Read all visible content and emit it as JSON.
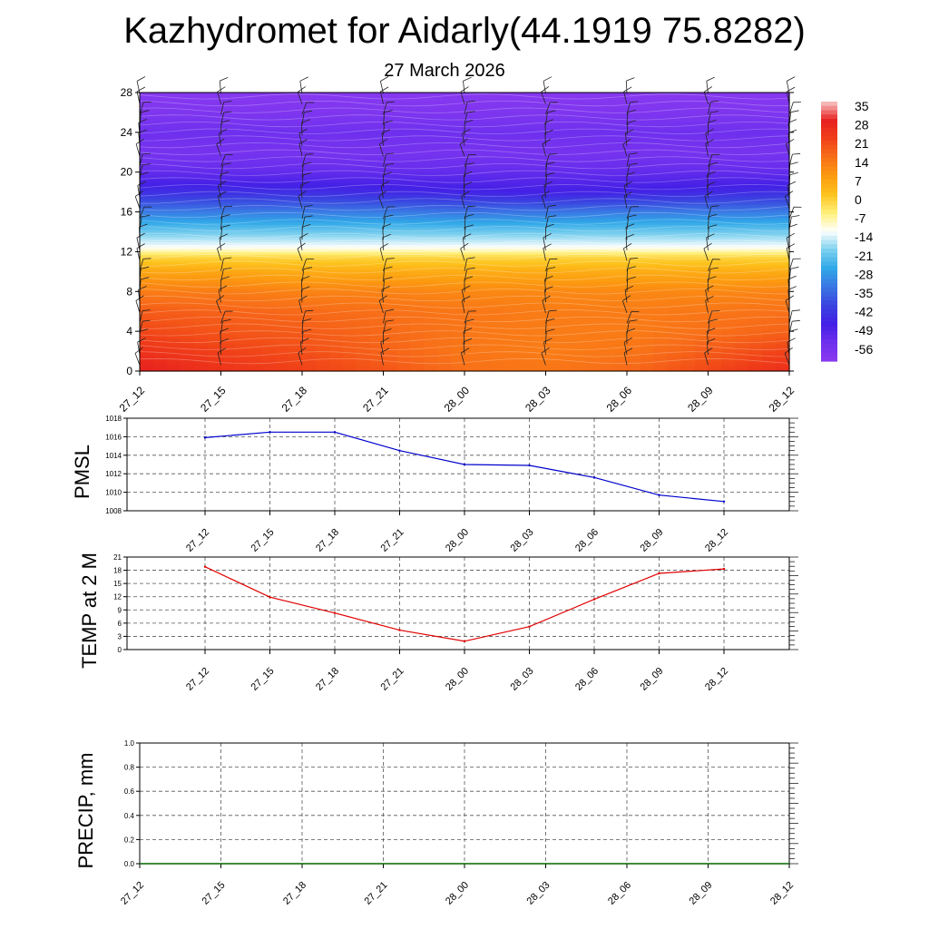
{
  "title": "Kazhydromet for Aidarly(44.1919 75.8282)",
  "subtitle": "27 March 2026",
  "colors": {
    "pmsl_line": "#0000cc",
    "temp_line": "#e00000",
    "precip_line": "#006600",
    "grid": "#555555"
  },
  "chart_data": [
    {
      "type": "heatmap",
      "name": "vertical temperature cross-section with wind barbs",
      "x_ticks": [
        "27_12",
        "27_15",
        "27_18",
        "27_21",
        "28_00",
        "28_03",
        "28_06",
        "28_09",
        "28_12"
      ],
      "y_ticks": [
        "0",
        "4",
        "8",
        "12",
        "16",
        "20",
        "24",
        "28"
      ],
      "ylim": [
        0,
        28
      ],
      "colorbar_labels": [
        "35",
        "28",
        "21",
        "14",
        "7",
        "0",
        "-7",
        "-14",
        "-21",
        "-28",
        "-35",
        "-42",
        "-49",
        "-56"
      ],
      "temperature_levels": [
        {
          "level": 0,
          "values": [
            28,
            24,
            21,
            18,
            14,
            13,
            15,
            20,
            25
          ]
        },
        {
          "level": 2,
          "values": [
            24,
            21,
            19,
            16,
            13,
            12,
            13,
            17,
            21
          ]
        },
        {
          "level": 4,
          "values": [
            20,
            18,
            17,
            15,
            13,
            12,
            12,
            14,
            16
          ]
        },
        {
          "level": 6,
          "values": [
            17,
            16,
            15,
            14,
            13,
            12,
            12,
            13,
            14
          ]
        },
        {
          "level": 8,
          "values": [
            12,
            12,
            11,
            11,
            10,
            10,
            10,
            10,
            11
          ]
        },
        {
          "level": 10,
          "values": [
            5,
            5,
            4,
            4,
            4,
            4,
            4,
            4,
            4
          ]
        },
        {
          "level": 11.5,
          "values": [
            -3,
            -3,
            -3,
            -3,
            -3,
            -3,
            -3,
            -3,
            -3
          ]
        },
        {
          "level": 12.5,
          "values": [
            -14,
            -14,
            -14,
            -14,
            -14,
            -14,
            -14,
            -14,
            -14
          ]
        },
        {
          "level": 14,
          "values": [
            -22,
            -22,
            -22,
            -22,
            -22,
            -22,
            -22,
            -22,
            -22
          ]
        },
        {
          "level": 16,
          "values": [
            -34,
            -34,
            -34,
            -34,
            -35,
            -35,
            -34,
            -34,
            -34
          ]
        },
        {
          "level": 18,
          "values": [
            -46,
            -46,
            -46,
            -47,
            -48,
            -49,
            -48,
            -47,
            -46
          ]
        },
        {
          "level": 20,
          "values": [
            -54,
            -54,
            -54,
            -54,
            -54,
            -54,
            -54,
            -54,
            -54
          ]
        },
        {
          "level": 22,
          "values": [
            -58,
            -58,
            -58,
            -58,
            -58,
            -58,
            -58,
            -58,
            -58
          ]
        },
        {
          "level": 24,
          "values": [
            -56,
            -56,
            -56,
            -56,
            -56,
            -56,
            -56,
            -56,
            -56
          ]
        },
        {
          "level": 26,
          "values": [
            -60,
            -60,
            -60,
            -60,
            -60,
            -60,
            -60,
            -60,
            -60
          ]
        },
        {
          "level": 28,
          "values": [
            -62,
            -62,
            -62,
            -62,
            -62,
            -62,
            -62,
            -62,
            -62
          ]
        }
      ]
    },
    {
      "type": "line",
      "ylabel": "PMSL",
      "ylim": [
        1008,
        1018
      ],
      "y_ticks": [
        "1008",
        "1010",
        "1012",
        "1014",
        "1016",
        "1018"
      ],
      "categories": [
        "27_12",
        "27_15",
        "27_18",
        "27_21",
        "28_00",
        "28_03",
        "28_06",
        "28_09",
        "28_12"
      ],
      "values": [
        1015.9,
        1016.5,
        1016.5,
        1014.5,
        1013.0,
        1012.9,
        1011.6,
        1009.7,
        1009.0
      ]
    },
    {
      "type": "line",
      "ylabel": "TEMP at 2 M",
      "ylim": [
        0,
        21
      ],
      "y_ticks": [
        "0",
        "3",
        "6",
        "9",
        "12",
        "15",
        "18",
        "21"
      ],
      "categories": [
        "27_12",
        "27_15",
        "27_18",
        "27_21",
        "28_00",
        "28_03",
        "28_06",
        "28_09",
        "28_12"
      ],
      "values": [
        18.8,
        11.9,
        8.3,
        4.4,
        1.9,
        5.2,
        11.4,
        17.3,
        18.3
      ]
    },
    {
      "type": "line",
      "ylabel": "PRECIP, mm",
      "ylim": [
        0,
        1.0
      ],
      "y_ticks": [
        "0.0",
        "0.2",
        "0.4",
        "0.6",
        "0.8",
        "1.0"
      ],
      "x_ticks": [
        "27_12",
        "27_15",
        "27_18",
        "27_21",
        "28_00",
        "28_03",
        "28_06",
        "28_09",
        "28_12"
      ],
      "values": [
        0,
        0,
        0,
        0,
        0,
        0,
        0,
        0,
        0,
        0,
        0,
        0,
        0,
        0,
        0,
        0,
        0,
        0,
        0,
        0,
        0,
        0,
        0,
        0,
        0,
        0,
        0,
        0,
        0,
        0,
        0,
        0,
        0,
        0,
        0,
        0,
        0
      ]
    }
  ]
}
